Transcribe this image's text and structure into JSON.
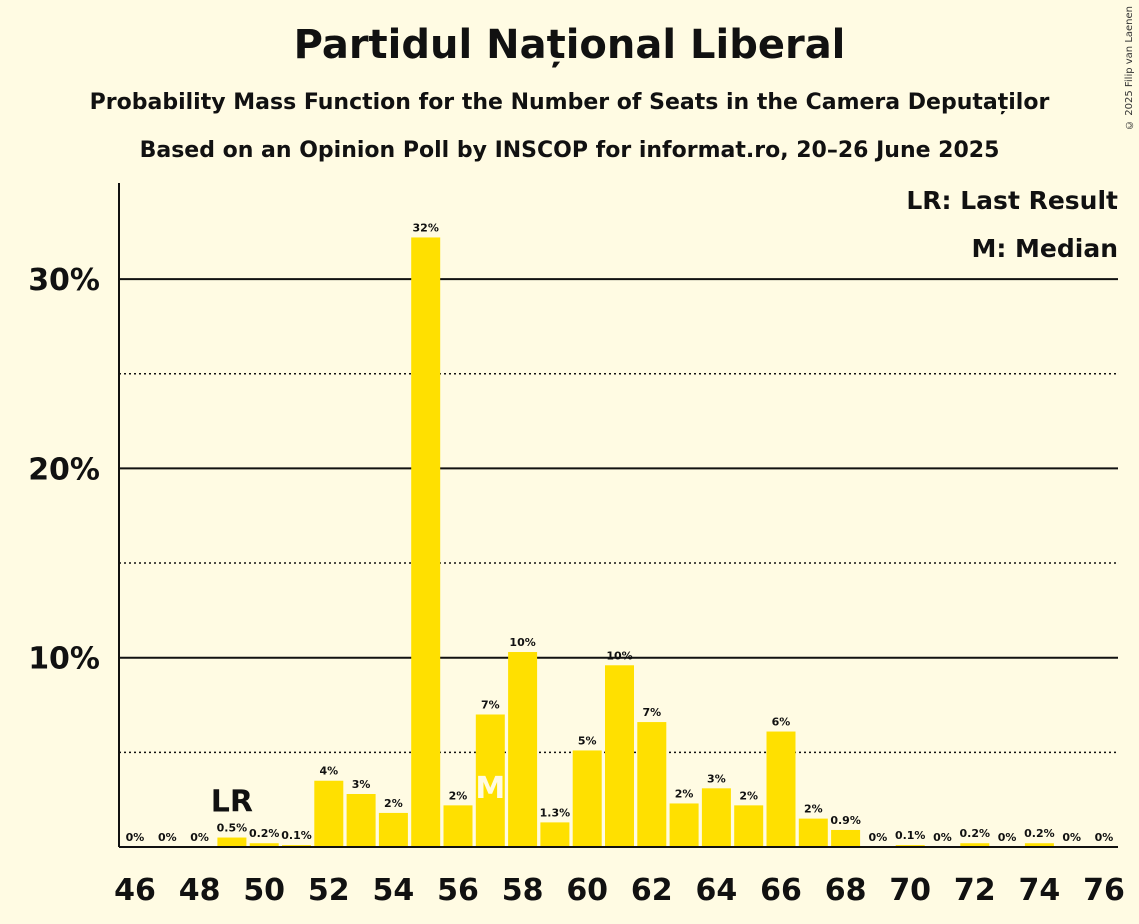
{
  "title": "Partidul Național Liberal",
  "subtitle": "Probability Mass Function for the Number of Seats in the Camera Deputaților",
  "subtitle2": "Based on an Opinion Poll by INSCOP for informat.ro, 20–26 June 2025",
  "copyright": "© 2025 Filip van Laenen",
  "legend": {
    "lr": "LR: Last Result",
    "median": "M: Median"
  },
  "markers": {
    "lr_text": "LR",
    "lr_seat": 49,
    "median_text": "M",
    "median_seat": 57
  },
  "colors": {
    "bar": "#FFE000",
    "background": "#FFFBE3",
    "text": "#111111"
  },
  "chart_data": {
    "type": "bar",
    "x": [
      46,
      47,
      48,
      49,
      50,
      51,
      52,
      53,
      54,
      55,
      56,
      57,
      58,
      59,
      60,
      61,
      62,
      63,
      64,
      65,
      66,
      67,
      68,
      69,
      70,
      71,
      72,
      73,
      74,
      75,
      76
    ],
    "values": [
      0,
      0,
      0,
      0.5,
      0.2,
      0.1,
      3.5,
      2.8,
      1.8,
      32.2,
      2.2,
      7.0,
      10.3,
      1.3,
      5.1,
      9.6,
      6.6,
      2.3,
      3.1,
      2.2,
      6.1,
      1.5,
      0.9,
      0,
      0.1,
      0,
      0.2,
      0,
      0.2,
      0,
      0
    ],
    "data_labels": [
      "0%",
      "0%",
      "0%",
      "0.5%",
      "0.2%",
      "0.1%",
      "4%",
      "3%",
      "2%",
      "32%",
      "2%",
      "7%",
      "10%",
      "1.3%",
      "5%",
      "10%",
      "7%",
      "2%",
      "3%",
      "2%",
      "6%",
      "2%",
      "0.9%",
      "0%",
      "0.1%",
      "0%",
      "0.2%",
      "0%",
      "0.2%",
      "0%",
      "0%"
    ],
    "x_tick_labels": [
      "46",
      "48",
      "50",
      "52",
      "54",
      "56",
      "58",
      "60",
      "62",
      "64",
      "66",
      "68",
      "70",
      "72",
      "74",
      "76"
    ],
    "y_tick_labels": [
      "10%",
      "20%",
      "30%"
    ],
    "y_ticks": [
      10,
      20,
      30
    ],
    "y_minor_ticks": [
      5,
      15,
      25
    ],
    "ylim": [
      0,
      35
    ],
    "grid": true
  }
}
